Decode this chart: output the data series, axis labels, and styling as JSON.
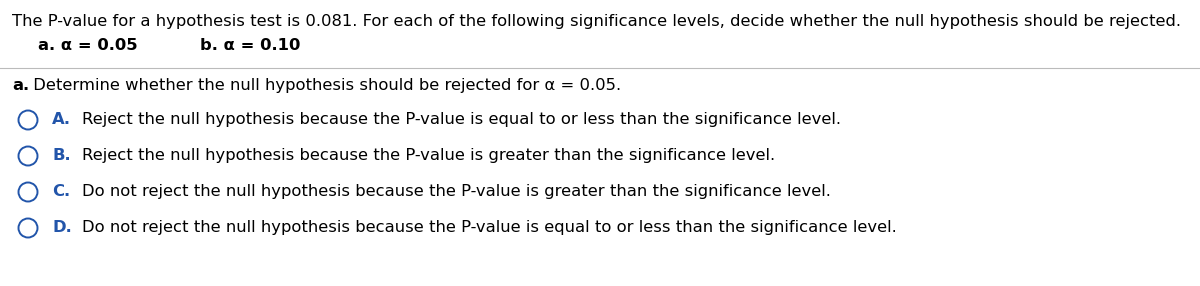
{
  "background_color": "#ffffff",
  "line1": "The P-value for a hypothesis test is 0.081. For each of the following significance levels, decide whether the null hypothesis should be rejected.",
  "sub_a_label": "a. α = 0.05",
  "sub_b_label": "b. α = 0.10",
  "question_bold": "a.",
  "question_rest": " Determine whether the null hypothesis should be rejected for α = 0.05.",
  "options": [
    {
      "letter": "A.",
      "text": "Reject the null hypothesis because the P-value is equal to or less than the significance level."
    },
    {
      "letter": "B.",
      "text": "Reject the null hypothesis because the P-value is greater than the significance level."
    },
    {
      "letter": "C.",
      "text": "Do not reject the null hypothesis because the P-value is greater than the significance level."
    },
    {
      "letter": "D.",
      "text": "Do not reject the null hypothesis because the P-value is equal to or less than the significance level."
    }
  ],
  "text_color": "#000000",
  "blue_color": "#2255aa",
  "font_size_main": 11.8,
  "font_size_sub": 11.8,
  "font_size_options": 11.8
}
